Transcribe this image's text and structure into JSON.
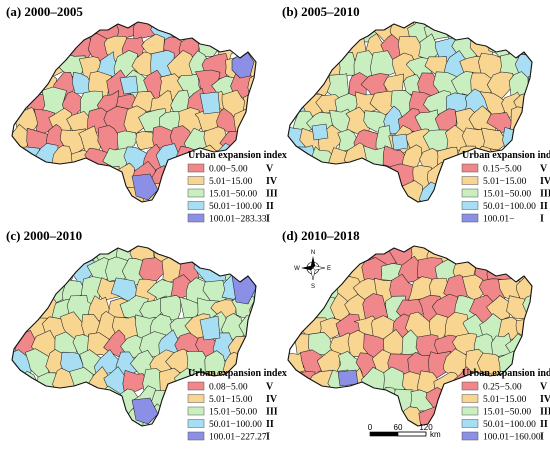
{
  "colors": {
    "V": "#f0878a",
    "IV": "#f8d591",
    "III": "#c9efc1",
    "II": "#a8def3",
    "I": "#8c8fe6"
  },
  "panels": [
    {
      "id": "a",
      "title": "(a) 2000–2005",
      "legend_title": "Urban expansion index",
      "legend": [
        {
          "range": "0.00−5.00",
          "class": "V",
          "color": "#f0878a"
        },
        {
          "range": "5.01−15.00",
          "class": "IV",
          "color": "#f8d591"
        },
        {
          "range": "15.01−50.00",
          "class": "III",
          "color": "#c9efc1"
        },
        {
          "range": "50.01−100.00",
          "class": "II",
          "color": "#a8def3"
        },
        {
          "range": "100.01−283.33",
          "class": "I",
          "color": "#8c8fe6"
        }
      ]
    },
    {
      "id": "b",
      "title": "(b) 2005–2010",
      "legend_title": "Urban expansion index",
      "legend": [
        {
          "range": "0.15−5.00",
          "class": "V",
          "color": "#f0878a"
        },
        {
          "range": "5.01−15.00",
          "class": "IV",
          "color": "#f8d591"
        },
        {
          "range": "15.01−50.00",
          "class": "III",
          "color": "#c9efc1"
        },
        {
          "range": "50.01−100.00",
          "class": "II",
          "color": "#a8def3"
        },
        {
          "range": "100.01−",
          "class": "I",
          "color": "#8c8fe6"
        }
      ]
    },
    {
      "id": "c",
      "title": "(c) 2000–2010",
      "legend_title": "Urban expansion index",
      "legend": [
        {
          "range": "0.08−5.00",
          "class": "V",
          "color": "#f0878a"
        },
        {
          "range": "5.01−15.00",
          "class": "IV",
          "color": "#f8d591"
        },
        {
          "range": "15.01−50.00",
          "class": "III",
          "color": "#c9efc1"
        },
        {
          "range": "50.01−100.00",
          "class": "II",
          "color": "#a8def3"
        },
        {
          "range": "100.01−227.27",
          "class": "I",
          "color": "#8c8fe6"
        }
      ]
    },
    {
      "id": "d",
      "title": "(d) 2010–2018",
      "legend_title": "Urban expansion index",
      "legend": [
        {
          "range": "0.25−5.00",
          "class": "V",
          "color": "#f0878a"
        },
        {
          "range": "5.01−15.00",
          "class": "IV",
          "color": "#f8d591"
        },
        {
          "range": "15.01−50.00",
          "class": "III",
          "color": "#c9efc1"
        },
        {
          "range": "50.01−100.00",
          "class": "II",
          "color": "#a8def3"
        },
        {
          "range": "100.01−160.00",
          "class": "I",
          "color": "#8c8fe6"
        }
      ]
    }
  ],
  "compass": {
    "n": "N",
    "s": "S",
    "e": "E",
    "w": "W"
  },
  "scale_bar": {
    "ticks": [
      "0",
      "60",
      "120"
    ],
    "unit": "km"
  }
}
